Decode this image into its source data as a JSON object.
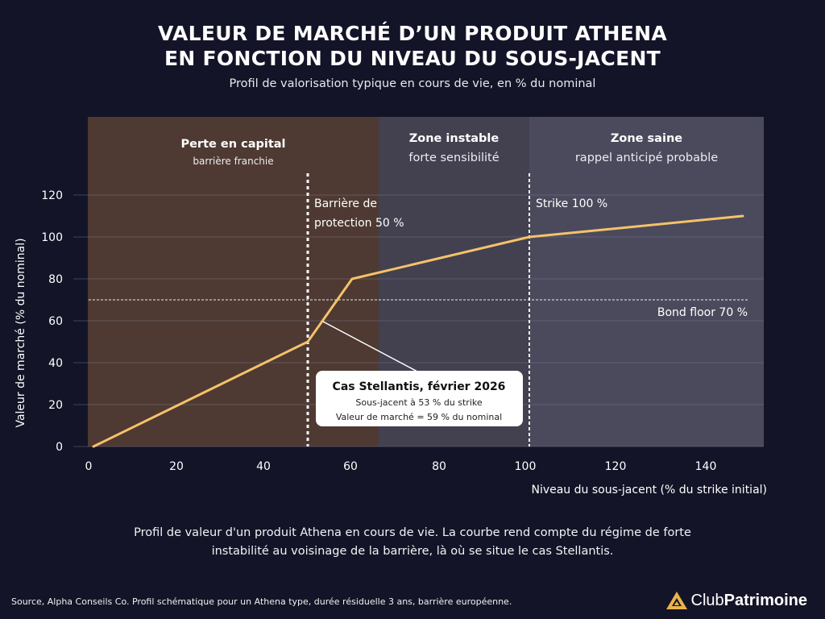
{
  "page": {
    "title_line1": "VALEUR DE MARCHÉ D’UN PRODUIT ATHENA",
    "title_line2": "EN FONCTION DU NIVEAU DU SOUS-JACENT",
    "subtitle": "Profil de valorisation typique en cours de vie, en % du nominal",
    "caption_line1": "Profil de valeur d'un produit Athena en cours de vie. La courbe rend compte du régime de forte",
    "caption_line2": "instabilité au voisinage de la barrière, là où se situe le cas Stellantis.",
    "source": "Source, Alpha Conseils Co. Profil schématique pour un Athena type, durée résiduelle 3 ans, barrière européenne.",
    "logo_part1": "Club",
    "logo_part2": "Patrimoine",
    "logo_icon": "triangle-logo-icon"
  },
  "chart_data": {
    "type": "line",
    "title": "VALEUR DE MARCHÉ D’UN PRODUIT ATHENA EN FONCTION DU NIVEAU DU SOUS-JACENT",
    "subtitle": "Profil de valorisation typique en cours de vie, en % du nominal",
    "xlabel": "Niveau du sous-jacent (% du strike initial)",
    "ylabel": "Valeur de marché (% du nominal)",
    "xlim": [
      0,
      152
    ],
    "ylim": [
      0,
      120
    ],
    "xticks": [
      0,
      20,
      40,
      60,
      80,
      100,
      120,
      140
    ],
    "yticks": [
      0,
      20,
      40,
      60,
      80,
      100,
      120
    ],
    "grid": true,
    "series": [
      {
        "x": [
          1,
          50,
          60,
          100,
          148
        ],
        "y": [
          0,
          50,
          80,
          100,
          110
        ],
        "color": "#f5c26b"
      }
    ],
    "zones": [
      {
        "x_start": 0,
        "x_end": 65,
        "title": "Perte en capital",
        "subtitle": "barrière franchie",
        "color": "#4e3a32"
      },
      {
        "x_start": 65,
        "x_end": 99,
        "title": "Zone instable",
        "subtitle": "forte sensibilité",
        "color": "#43404f"
      },
      {
        "x_start": 99,
        "x_end": 152,
        "title": "Zone saine",
        "subtitle": "rappel anticipé probable",
        "color": "#4b4a5c"
      }
    ],
    "vlines": [
      {
        "x": 49.5,
        "label_line1": "Barrière de",
        "label_line2": "protection 50 %"
      },
      {
        "x": 99.5,
        "label_line1": "Strike 100 %",
        "label_line2": ""
      }
    ],
    "hline": {
      "y": 70,
      "label": "Bond floor 70 %"
    },
    "annotation": {
      "point_x": 53,
      "point_y": 59,
      "title": "Cas Stellantis, février 2026",
      "line1": "Sous-jacent à 53 % du strike",
      "line2": "Valeur de marché = 59 % du nominal"
    }
  }
}
